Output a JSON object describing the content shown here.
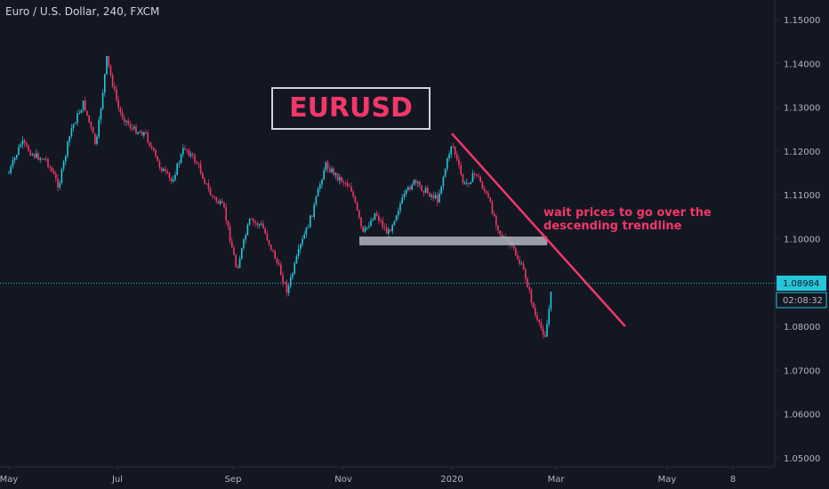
{
  "header": {
    "symbol_title": "Euro / U.S. Dollar, 240, FXCM"
  },
  "colors": {
    "background": "#131722",
    "up_candle": "#26c6da",
    "down_candle": "#f23869",
    "trendline": "#f23869",
    "support_zone": "#b2b5be",
    "price_line": "#26c6da",
    "axis_text": "#b2b5be",
    "label_box_border": "#d1d4dc"
  },
  "overlay": {
    "title_box": "EURUSD",
    "note_line1": "wait prices to go over the",
    "note_line2": "descending trendline"
  },
  "price_axis": {
    "current_price": "1.08984",
    "countdown": "02:08:32"
  },
  "chart_data": {
    "type": "candlestick",
    "title": "Euro / U.S. Dollar, 240, FXCM",
    "ylim": [
      1.05,
      1.155
    ],
    "y_ticks": [
      "1.15000",
      "1.14000",
      "1.13000",
      "1.12000",
      "1.11000",
      "1.10000",
      "1.09000",
      "1.08000",
      "1.07000",
      "1.06000",
      "1.05000"
    ],
    "x_ticks": [
      "May",
      "Jul",
      "Sep",
      "Nov",
      "2020",
      "Mar",
      "May",
      "8"
    ],
    "price_path": [
      [
        "2019-05-01",
        1.115
      ],
      [
        "2019-05-08",
        1.122
      ],
      [
        "2019-05-15",
        1.119
      ],
      [
        "2019-05-22",
        1.118
      ],
      [
        "2019-05-29",
        1.112
      ],
      [
        "2019-06-05",
        1.125
      ],
      [
        "2019-06-12",
        1.131
      ],
      [
        "2019-06-19",
        1.121
      ],
      [
        "2019-06-25",
        1.141
      ],
      [
        "2019-07-02",
        1.129
      ],
      [
        "2019-07-09",
        1.125
      ],
      [
        "2019-07-16",
        1.124
      ],
      [
        "2019-07-23",
        1.117
      ],
      [
        "2019-07-30",
        1.113
      ],
      [
        "2019-08-06",
        1.121
      ],
      [
        "2019-08-13",
        1.117
      ],
      [
        "2019-08-20",
        1.11
      ],
      [
        "2019-08-27",
        1.107
      ],
      [
        "2019-09-03",
        1.093
      ],
      [
        "2019-09-10",
        1.104
      ],
      [
        "2019-09-17",
        1.103
      ],
      [
        "2019-09-24",
        1.096
      ],
      [
        "2019-10-01",
        1.088
      ],
      [
        "2019-10-08",
        1.098
      ],
      [
        "2019-10-15",
        1.106
      ],
      [
        "2019-10-22",
        1.117
      ],
      [
        "2019-10-29",
        1.114
      ],
      [
        "2019-11-05",
        1.112
      ],
      [
        "2019-11-12",
        1.101
      ],
      [
        "2019-11-19",
        1.106
      ],
      [
        "2019-11-26",
        1.101
      ],
      [
        "2019-12-03",
        1.108
      ],
      [
        "2019-12-10",
        1.113
      ],
      [
        "2019-12-17",
        1.111
      ],
      [
        "2019-12-24",
        1.109
      ],
      [
        "2020-01-01",
        1.122
      ],
      [
        "2020-01-08",
        1.112
      ],
      [
        "2020-01-15",
        1.115
      ],
      [
        "2020-01-22",
        1.109
      ],
      [
        "2020-01-29",
        1.101
      ],
      [
        "2020-02-05",
        1.098
      ],
      [
        "2020-02-12",
        1.092
      ],
      [
        "2020-02-19",
        1.081
      ],
      [
        "2020-02-24",
        1.078
      ],
      [
        "2020-02-28",
        1.0898
      ]
    ],
    "annotations": {
      "trendline": {
        "from": [
          "2020-01-01",
          1.124
        ],
        "to": [
          "2020-04-08",
          1.08
        ]
      },
      "support_zone": {
        "from": "2019-11-10",
        "to": "2020-02-25",
        "low": 1.0985,
        "high": 1.1005
      },
      "price_line": 1.08984
    }
  }
}
